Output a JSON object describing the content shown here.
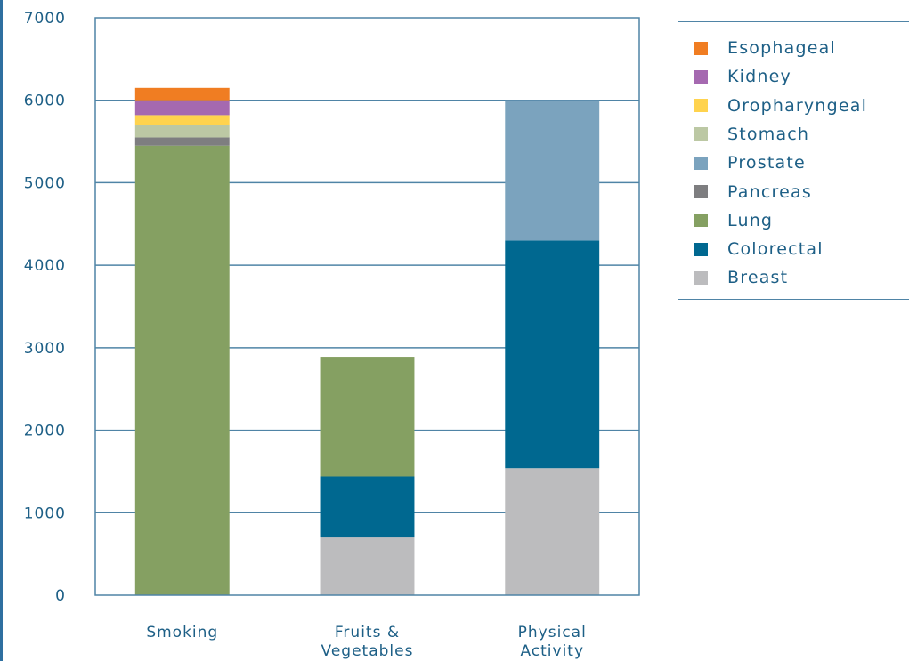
{
  "chart_data": {
    "type": "bar",
    "stacked": true,
    "categories": [
      [
        "Smoking"
      ],
      [
        "Fruits &",
        "Vegetables"
      ],
      [
        "Physical",
        "Activity"
      ]
    ],
    "ylim": [
      0,
      7000
    ],
    "yticks": [
      0,
      1000,
      2000,
      3000,
      4000,
      5000,
      6000,
      7000
    ],
    "grid": true,
    "legend_position": "right",
    "series": [
      {
        "name": "Breast",
        "color": "#bcbcbe",
        "values": [
          0,
          700,
          1540
        ]
      },
      {
        "name": "Colorectal",
        "color": "#006890",
        "values": [
          0,
          740,
          2760
        ]
      },
      {
        "name": "Lung",
        "color": "#85a062",
        "values": [
          5450,
          1450,
          0
        ]
      },
      {
        "name": "Pancreas",
        "color": "#7e7e80",
        "values": [
          100,
          0,
          0
        ]
      },
      {
        "name": "Prostate",
        "color": "#7ba3be",
        "values": [
          0,
          0,
          1700
        ]
      },
      {
        "name": "Stomach",
        "color": "#bcc8a4",
        "values": [
          150,
          0,
          0
        ]
      },
      {
        "name": "Oropharyngeal",
        "color": "#ffd34e",
        "values": [
          120,
          0,
          0
        ]
      },
      {
        "name": "Kidney",
        "color": "#a569b0",
        "values": [
          180,
          0,
          0
        ]
      },
      {
        "name": "Esophageal",
        "color": "#f07d22",
        "values": [
          150,
          0,
          0
        ]
      }
    ],
    "legend_order": [
      "Esophageal",
      "Kidney",
      "Oropharyngeal",
      "Stomach",
      "Prostate",
      "Pancreas",
      "Lung",
      "Colorectal",
      "Breast"
    ]
  }
}
